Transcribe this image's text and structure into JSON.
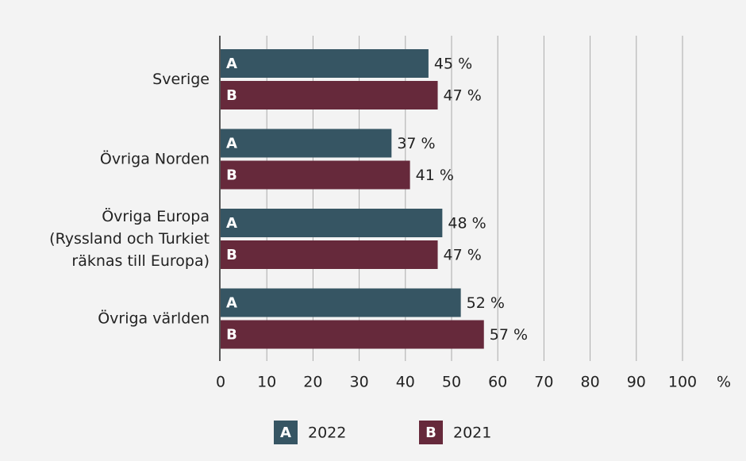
{
  "chart_data": {
    "type": "bar",
    "categories": [
      "Sverige",
      "Övriga Norden",
      "Övriga Europa\n(Ryssland och Turkiet\nräknas till Europa)",
      "Övriga världen"
    ],
    "series": [
      {
        "name": "2022",
        "letter": "A",
        "color": "#365563",
        "values": [
          45,
          37,
          48,
          52
        ],
        "value_labels": [
          "45 %",
          "37 %",
          "48 %",
          "52 %"
        ]
      },
      {
        "name": "2021",
        "letter": "B",
        "color": "#66293b",
        "values": [
          47,
          41,
          47,
          57
        ],
        "value_labels": [
          "47 %",
          "41 %",
          "47 %",
          "57 %"
        ]
      }
    ],
    "xlim": [
      0,
      100
    ],
    "xticks": [
      0,
      10,
      20,
      30,
      40,
      50,
      60,
      70,
      80,
      90,
      100
    ],
    "xlabel": "%",
    "grid": true
  }
}
